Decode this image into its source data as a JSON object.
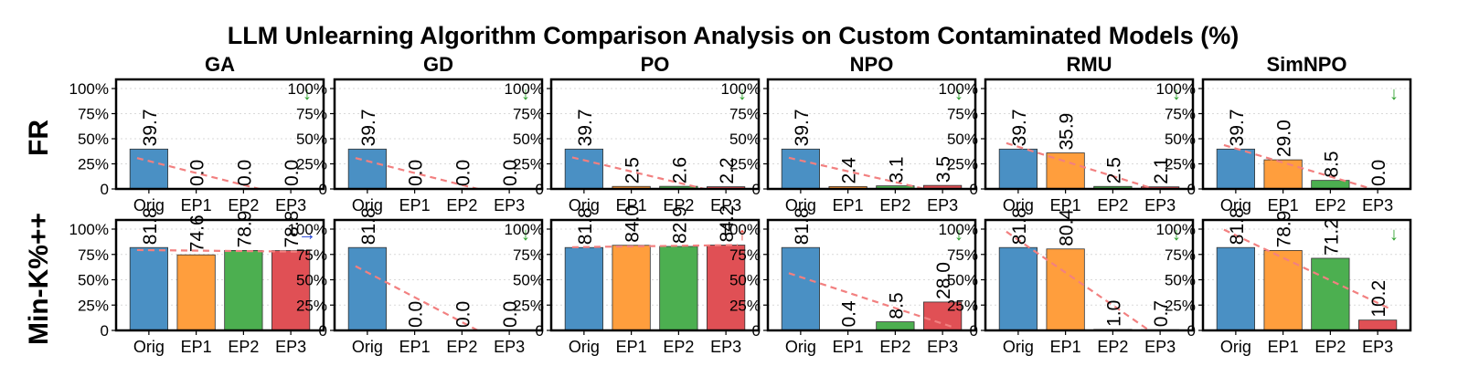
{
  "chart_data": {
    "type": "bar",
    "title": "LLM Unlearning Algorithm Comparison Analysis on Custom Contaminated Models (%)",
    "categories": [
      "Orig",
      "EP1",
      "EP2",
      "EP3"
    ],
    "ylim": [
      0,
      100
    ],
    "yticks": [
      "0",
      "25%",
      "50%",
      "75%",
      "100%"
    ],
    "row_labels": [
      "FR",
      "Min-K%++"
    ],
    "col_labels": [
      "GA",
      "GD",
      "PO",
      "NPO",
      "RMU",
      "SimNPO"
    ],
    "colors": {
      "orig": "#4a90c4",
      "ep1": "#ff9e3d",
      "ep2": "#4caf50",
      "ep3": "#e05055",
      "trend": "#f28080",
      "arrow_down": "#2ca02c",
      "arrow_right": "#1f3fd6",
      "arrow_up": "#e8403a"
    },
    "panels": [
      {
        "row": 0,
        "col": 0,
        "values": [
          39.7,
          0.0,
          0.0,
          0.0
        ],
        "arrow": "↓",
        "arrow_color": "arrow_down"
      },
      {
        "row": 0,
        "col": 1,
        "values": [
          39.7,
          0.0,
          0.0,
          0.0
        ],
        "arrow": "↓",
        "arrow_color": "arrow_down"
      },
      {
        "row": 0,
        "col": 2,
        "values": [
          39.7,
          2.5,
          2.6,
          2.2
        ],
        "arrow": "↓",
        "arrow_color": "arrow_down"
      },
      {
        "row": 0,
        "col": 3,
        "values": [
          39.7,
          2.4,
          3.1,
          3.5
        ],
        "arrow": "↓",
        "arrow_color": "arrow_down"
      },
      {
        "row": 0,
        "col": 4,
        "values": [
          39.7,
          35.9,
          2.5,
          2.1
        ],
        "arrow": "↓",
        "arrow_color": "arrow_down"
      },
      {
        "row": 0,
        "col": 5,
        "values": [
          39.7,
          29.0,
          8.5,
          0.0
        ],
        "arrow": "↓",
        "arrow_color": "arrow_down"
      },
      {
        "row": 1,
        "col": 0,
        "values": [
          81.8,
          74.6,
          78.9,
          78.8
        ],
        "arrow": "→",
        "arrow_color": "arrow_right"
      },
      {
        "row": 1,
        "col": 1,
        "values": [
          81.8,
          0.0,
          0.0,
          0.0
        ],
        "arrow": "↓",
        "arrow_color": "arrow_down"
      },
      {
        "row": 1,
        "col": 2,
        "values": [
          81.8,
          84.0,
          82.9,
          84.2
        ],
        "arrow": "↑",
        "arrow_color": "arrow_up"
      },
      {
        "row": 1,
        "col": 3,
        "values": [
          81.8,
          0.4,
          8.5,
          28.0
        ],
        "arrow": "↓",
        "arrow_color": "arrow_down"
      },
      {
        "row": 1,
        "col": 4,
        "values": [
          81.8,
          80.4,
          1.0,
          0.7
        ],
        "arrow": "↓",
        "arrow_color": "arrow_down"
      },
      {
        "row": 1,
        "col": 5,
        "values": [
          81.8,
          78.9,
          71.2,
          10.2
        ],
        "arrow": "↓",
        "arrow_color": "arrow_down"
      }
    ]
  }
}
